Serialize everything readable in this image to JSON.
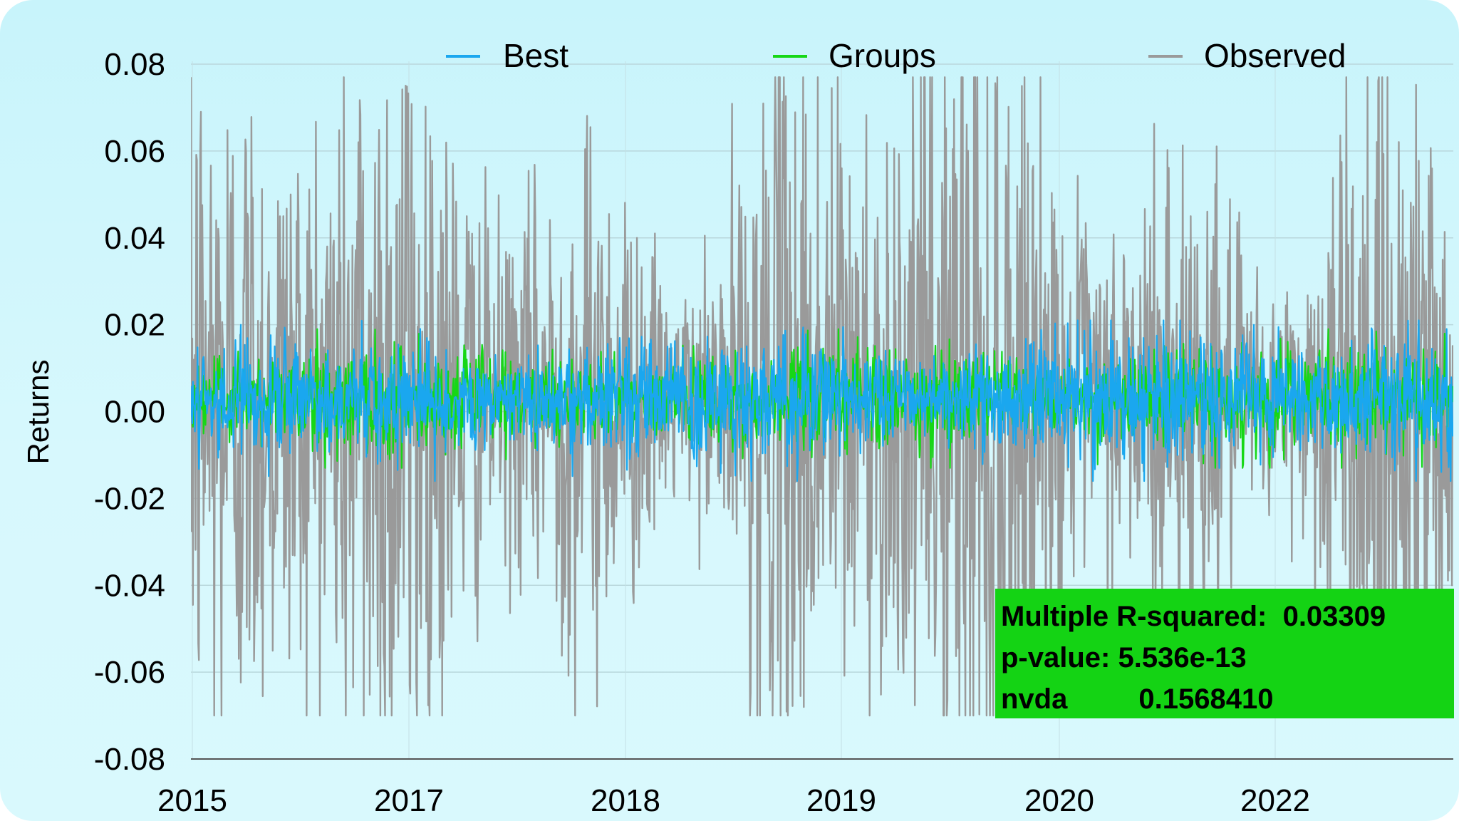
{
  "chart_data": {
    "type": "line",
    "title": "",
    "xlabel": "",
    "ylabel": "Returns",
    "ylim": [
      -0.08,
      0.08
    ],
    "yticks": [
      "0.08",
      "0.06",
      "0.04",
      "0.02",
      "0.00",
      "-0.02",
      "-0.04",
      "-0.06",
      "-0.08"
    ],
    "xticks": [
      "2015",
      "2017",
      "2018",
      "2019",
      "2020",
      "2022"
    ],
    "grid": true,
    "legend": "top",
    "series": [
      {
        "name": "Best",
        "color": "#1aa7ef",
        "amplitude": 0.015,
        "description_center": 0.003
      },
      {
        "name": "Groups",
        "color": "#16d716",
        "amplitude": 0.013,
        "description_center": 0.003
      },
      {
        "name": "Observed",
        "color": "#9a9a9a",
        "ymax": 0.077,
        "ymin": -0.07
      }
    ]
  },
  "stats": {
    "line1": "Multiple R-squared:  0.03309",
    "line2": "p-value: 5.536e-13",
    "line3": "nvda         0.1568410"
  },
  "colors": {
    "stats_background": "#14d314"
  }
}
